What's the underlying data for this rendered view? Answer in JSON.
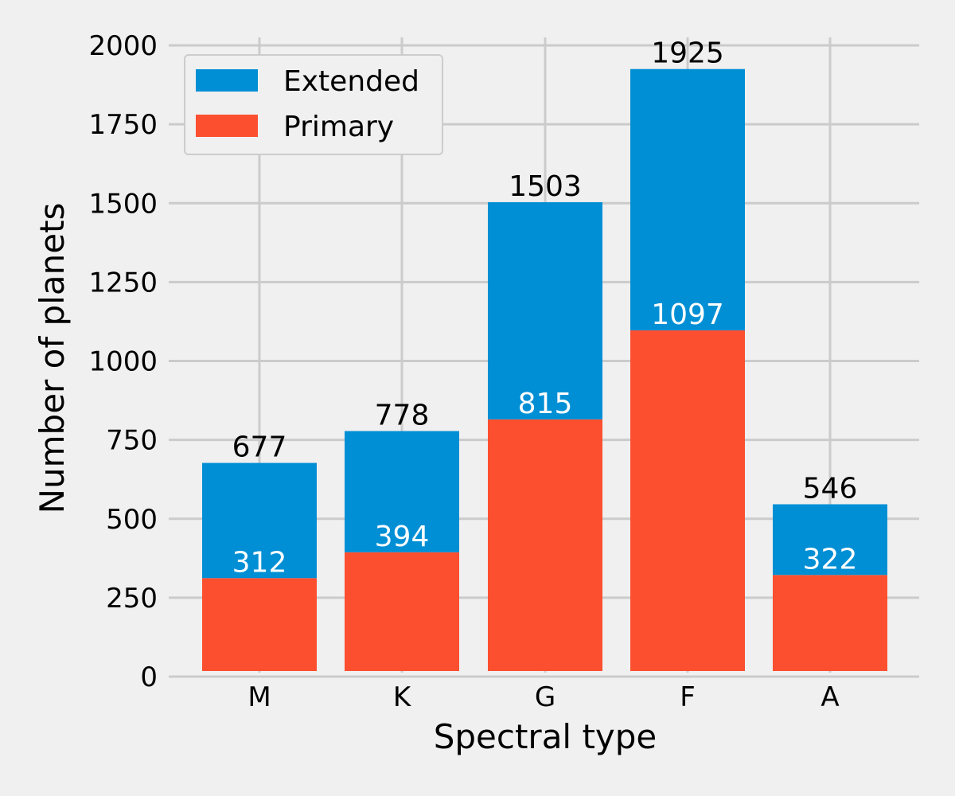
{
  "chart_data": {
    "type": "bar",
    "stacked": true,
    "categories": [
      "M",
      "K",
      "G",
      "F",
      "A"
    ],
    "series": [
      {
        "name": "Primary",
        "color": "#fc4f30",
        "values": [
          312,
          394,
          815,
          1097,
          322
        ]
      },
      {
        "name": "Extended",
        "color": "#008fd5",
        "values": [
          365,
          384,
          688,
          828,
          224
        ]
      }
    ],
    "totals": [
      677,
      778,
      1503,
      1925,
      546
    ],
    "primary_labels": [
      "312",
      "394",
      "815",
      "1097",
      "322"
    ],
    "total_labels": [
      "677",
      "778",
      "1503",
      "1925",
      "546"
    ],
    "xlabel": "Spectral type",
    "ylabel": "Number of planets",
    "ylim": [
      0,
      2000
    ],
    "yticks": [
      0,
      250,
      500,
      750,
      1000,
      1250,
      1500,
      1750,
      2000
    ],
    "ytick_labels": [
      "0",
      "250",
      "500",
      "750",
      "1000",
      "1250",
      "1500",
      "1750",
      "2000"
    ],
    "grid": true,
    "legend": {
      "placement": "top-left",
      "entries": [
        "Extended",
        "Primary"
      ]
    },
    "style": {
      "background": "#f0f0f0",
      "grid_color": "#cbcbcb"
    }
  }
}
